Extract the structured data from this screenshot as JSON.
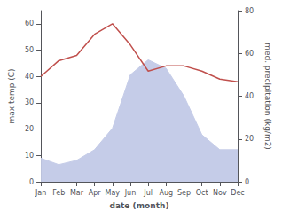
{
  "chart_data": {
    "type": "line",
    "xlabel": "date (month)",
    "ylabel": "max temp (C)",
    "y2label": "med. precipitation (kg/m2)",
    "categories": [
      "Jan",
      "Feb",
      "Mar",
      "Apr",
      "May",
      "Jun",
      "Jul",
      "Aug",
      "Sep",
      "Oct",
      "Nov",
      "Dec"
    ],
    "series": [
      {
        "type": "area",
        "axis": "y2",
        "color": "#c5cce8",
        "values": [
          11,
          8,
          10,
          15,
          25,
          50,
          57,
          53,
          40,
          22,
          15,
          15
        ]
      },
      {
        "type": "line",
        "color": "#c0504d",
        "values": [
          40,
          46,
          48,
          56,
          60,
          52,
          42,
          44,
          44,
          42,
          39,
          38
        ]
      }
    ],
    "ylim": [
      0,
      65
    ],
    "yticks": [
      0,
      10,
      20,
      30,
      40,
      50,
      60
    ],
    "y2lim": [
      0,
      80
    ],
    "y2ticks": [
      0,
      20,
      40,
      60,
      80
    ],
    "grid": false
  }
}
